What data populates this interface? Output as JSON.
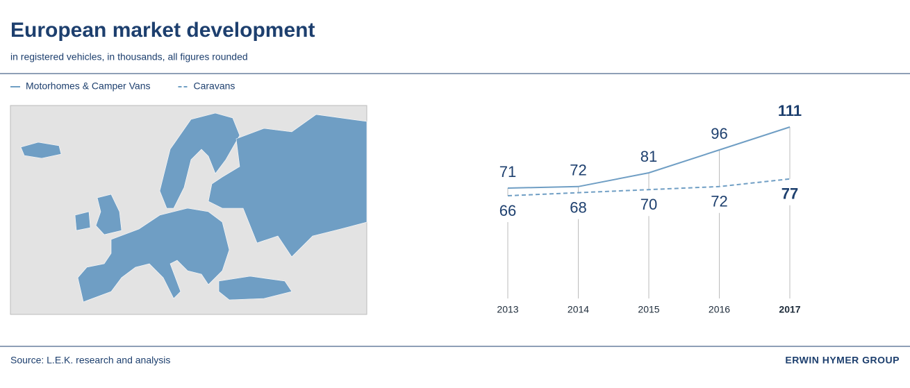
{
  "title": "European market development",
  "subtitle": "in registered vehicles, in thousands, all figures rounded",
  "chart_data": {
    "type": "line",
    "categories": [
      "2013",
      "2014",
      "2015",
      "2016",
      "2017"
    ],
    "series": [
      {
        "name": "Motorhomes & Camper Vans",
        "color": "#6f9ec4",
        "style": "solid",
        "values": [
          71,
          72,
          81,
          96,
          111
        ]
      },
      {
        "name": "Caravans",
        "color": "#6f9ec4",
        "style": "dashed",
        "values": [
          66,
          68,
          70,
          72,
          77
        ]
      }
    ]
  },
  "source": "Source: L.E.K. research and analysis",
  "brand": "ERWIN HYMER GROUP"
}
